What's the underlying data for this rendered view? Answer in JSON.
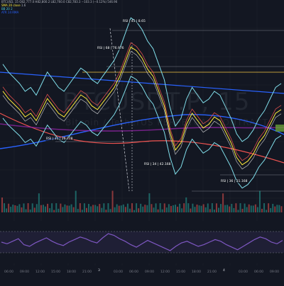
{
  "header": {
    "symbol_line": "BTCUSD, 15  O82,777.0 H82,800.2 L82,760.0 C82,783.3 −103.3 (−0.12%) 546.96",
    "indicators": [
      {
        "name": "SMA 20 close",
        "value": "1.6",
        "color": "#ffeb3b"
      },
      {
        "name": "BB 20 2",
        "value": "",
        "color": "#4dd0e1"
      },
      {
        "name": "ATR 14 RMA",
        "value": "",
        "color": "#2962ff"
      }
    ]
  },
  "watermark": {
    "title": "BTCUSDT.P, 15",
    "subtitle": "Bitcoin / TetherUS PERPETUAL CONTRACT"
  },
  "rsi_labels": [
    {
      "text": "RSI | 45 | 8.65"
    },
    {
      "text": "RSI | 68 | 76.976"
    },
    {
      "text": "RSI | 31 | 26.778"
    },
    {
      "text": "RSI | 34 | 42.168"
    },
    {
      "text": "RSI | 36 | 31.168"
    }
  ],
  "time_axis": {
    "labels": [
      "06:00",
      "09:00",
      "12:00",
      "15:00",
      "18:00",
      "21:00",
      "3",
      "03:00",
      "06:00",
      "09:00",
      "12:00",
      "15:00",
      "18:00",
      "21:00",
      "4",
      "03:00",
      "06:00",
      "09:00"
    ]
  },
  "colors": {
    "background": "#131722",
    "bb_band": "#80deea",
    "sma": "#ffeb3b",
    "trend_blue": "#2962ff",
    "trend_red": "#ef5350",
    "rsi": "#7e57c2",
    "volume_up": "#26a69a",
    "volume_down": "#ef5350"
  },
  "chart_data": {
    "type": "line",
    "series": [
      {
        "name": "price",
        "values": [
          62,
          58,
          55,
          52,
          48,
          50,
          46,
          52,
          58,
          54,
          50,
          48,
          52,
          56,
          60,
          58,
          54,
          52,
          56,
          60,
          64,
          70,
          78,
          86,
          84,
          80,
          74,
          70,
          62,
          54,
          40,
          30,
          34,
          44,
          50,
          46,
          42,
          44,
          48,
          46,
          40,
          34,
          26,
          22,
          24,
          28,
          34,
          38,
          44,
          50,
          52
        ]
      },
      {
        "name": "rsi",
        "values": [
          50,
          46,
          52,
          58,
          44,
          40,
          48,
          54,
          60,
          52,
          46,
          42,
          50,
          56,
          62,
          58,
          52,
          48,
          60,
          70,
          66,
          58,
          52,
          44,
          38,
          46,
          54,
          48,
          42,
          36,
          30,
          40,
          48,
          52,
          46,
          40,
          44,
          50,
          56,
          52,
          44,
          38,
          32,
          40,
          48,
          56,
          62,
          58,
          50,
          46,
          54
        ]
      }
    ]
  }
}
